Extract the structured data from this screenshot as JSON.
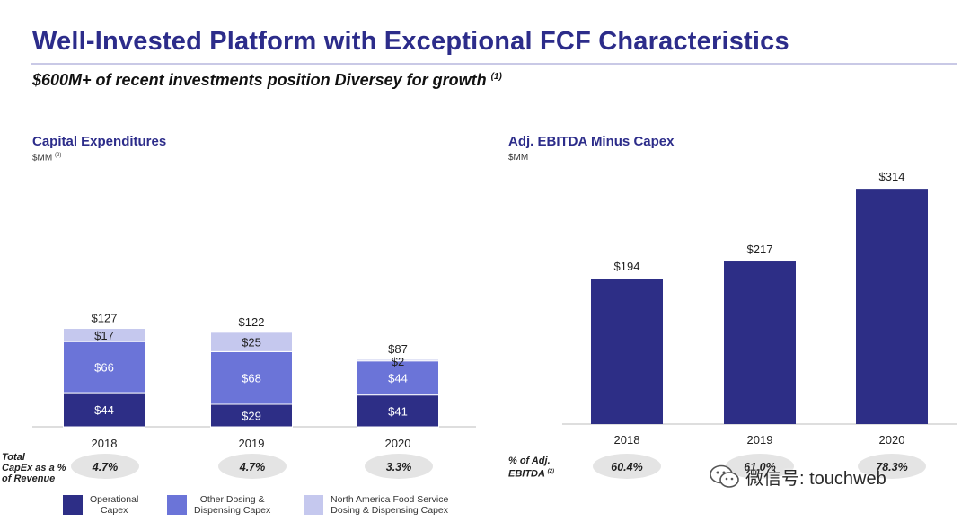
{
  "page": {
    "title": "Well-Invested Platform with Exceptional FCF Characteristics",
    "subtitle": "$600M+ of recent investments position Diversey for growth",
    "subtitle_note": "(1)"
  },
  "left_chart": {
    "title": "Capital Expenditures",
    "unit": "$MM",
    "unit_note": "(2)"
  },
  "right_chart": {
    "title": "Adj. EBITDA Minus Capex",
    "unit": "$MM"
  },
  "left_pct_row": {
    "label_line1": "Total",
    "label_line2": "CapEx as a %",
    "label_line3": "of Revenue",
    "values": [
      "4.7%",
      "4.7%",
      "3.3%"
    ]
  },
  "right_pct_row": {
    "label_line1": "% of Adj.",
    "label_line2": "EBITDA",
    "label_note": "(2)",
    "values": [
      "60.4%",
      "61.0%",
      "78.3%"
    ]
  },
  "legend": [
    {
      "line1": "Operational",
      "line2": "Capex",
      "color": "#2d2e86"
    },
    {
      "line1": "Other Dosing &",
      "line2": "Dispensing Capex",
      "color": "#6b74d8"
    },
    {
      "line1": "North America Food Service",
      "line2": "Dosing & Dispensing Capex",
      "color": "#c5c8ee"
    }
  ],
  "watermark": {
    "text": "微信号: touchweb",
    "icon": "wechat-icon"
  },
  "colors": {
    "title": "#2c2c8a",
    "dark": "#2d2e86",
    "mid": "#6b74d8",
    "light": "#c5c8ee",
    "pill": "#e4e4e4"
  },
  "chart_data": [
    {
      "type": "bar",
      "stacked": true,
      "title": "Capital Expenditures",
      "ylabel": "$MM",
      "categories": [
        "2018",
        "2019",
        "2020"
      ],
      "series": [
        {
          "name": "Operational Capex",
          "values": [
            44,
            29,
            41
          ],
          "labels": [
            "$44",
            "$29",
            "$41"
          ]
        },
        {
          "name": "Other Dosing & Dispensing Capex",
          "values": [
            66,
            68,
            44
          ],
          "labels": [
            "$66",
            "$68",
            "$44"
          ]
        },
        {
          "name": "North America Food Service Dosing & Dispensing Capex",
          "values": [
            17,
            25,
            2
          ],
          "labels": [
            "$17",
            "$25",
            "$2"
          ]
        }
      ],
      "totals": [
        127,
        122,
        87
      ],
      "total_labels": [
        "$127",
        "$122",
        "$87"
      ],
      "ylim": [
        0,
        340
      ]
    },
    {
      "type": "bar",
      "title": "Adj. EBITDA Minus Capex",
      "ylabel": "$MM",
      "categories": [
        "2018",
        "2019",
        "2020"
      ],
      "values": [
        194,
        217,
        314
      ],
      "labels": [
        "$194",
        "$217",
        "$314"
      ],
      "ylim": [
        0,
        340
      ]
    }
  ]
}
